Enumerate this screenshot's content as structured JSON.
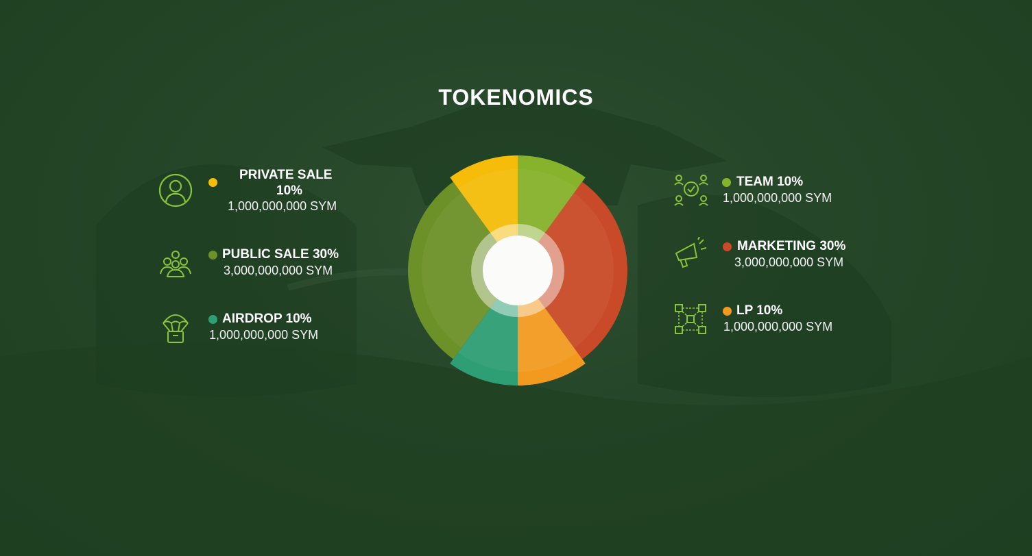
{
  "title": "TOKENOMICS",
  "colors": {
    "background": "#234424",
    "icon": "#8ac43a"
  },
  "chart_data": {
    "type": "pie",
    "slices": [
      {
        "label": "TEAM 10%",
        "value": 10,
        "amount": "1,000,000,000 SYM",
        "color": "#86b22c"
      },
      {
        "label": "MARKETING 30%",
        "value": 30,
        "amount": "3,000,000,000 SYM",
        "color": "#c94a28"
      },
      {
        "label": "LP 10%",
        "value": 10,
        "amount": "1,000,000,000 SYM",
        "color": "#f29a20"
      },
      {
        "label": "AIRDROP 10%",
        "value": 10,
        "amount": "1,000,000,000 SYM",
        "color": "#2e9e74"
      },
      {
        "label": "PUBLIC SALE 30%",
        "value": 30,
        "amount": "3,000,000,000 SYM",
        "color": "#6c9128"
      },
      {
        "label": "PRIVATE SALE 10%",
        "value": 10,
        "amount": "1,000,000,000 SYM",
        "color": "#f5bd0a"
      }
    ]
  },
  "legend": {
    "private_sale": {
      "label_line1": "PRIVATE SALE",
      "label_line2": "10%",
      "amount": "1,000,000,000 SYM",
      "color": "#f5bd0a",
      "icon": "user-icon"
    },
    "public_sale": {
      "label": "PUBLIC SALE 30%",
      "amount": "3,000,000,000 SYM",
      "color": "#6c9128",
      "icon": "group-icon"
    },
    "airdrop": {
      "label": "AIRDROP 10%",
      "amount": "1,000,000,000 SYM",
      "color": "#2e9e74",
      "icon": "parachute-icon"
    },
    "team": {
      "label": "TEAM 10%",
      "amount": "1,000,000,000 SYM",
      "color": "#86b22c",
      "icon": "team-icon"
    },
    "marketing": {
      "label": "MARKETING 30%",
      "amount": "3,000,000,000 SYM",
      "color": "#c94a28",
      "icon": "megaphone-icon"
    },
    "lp": {
      "label": "LP 10%",
      "amount": "1,000,000,000 SYM",
      "color": "#f29a20",
      "icon": "blocks-icon"
    }
  }
}
